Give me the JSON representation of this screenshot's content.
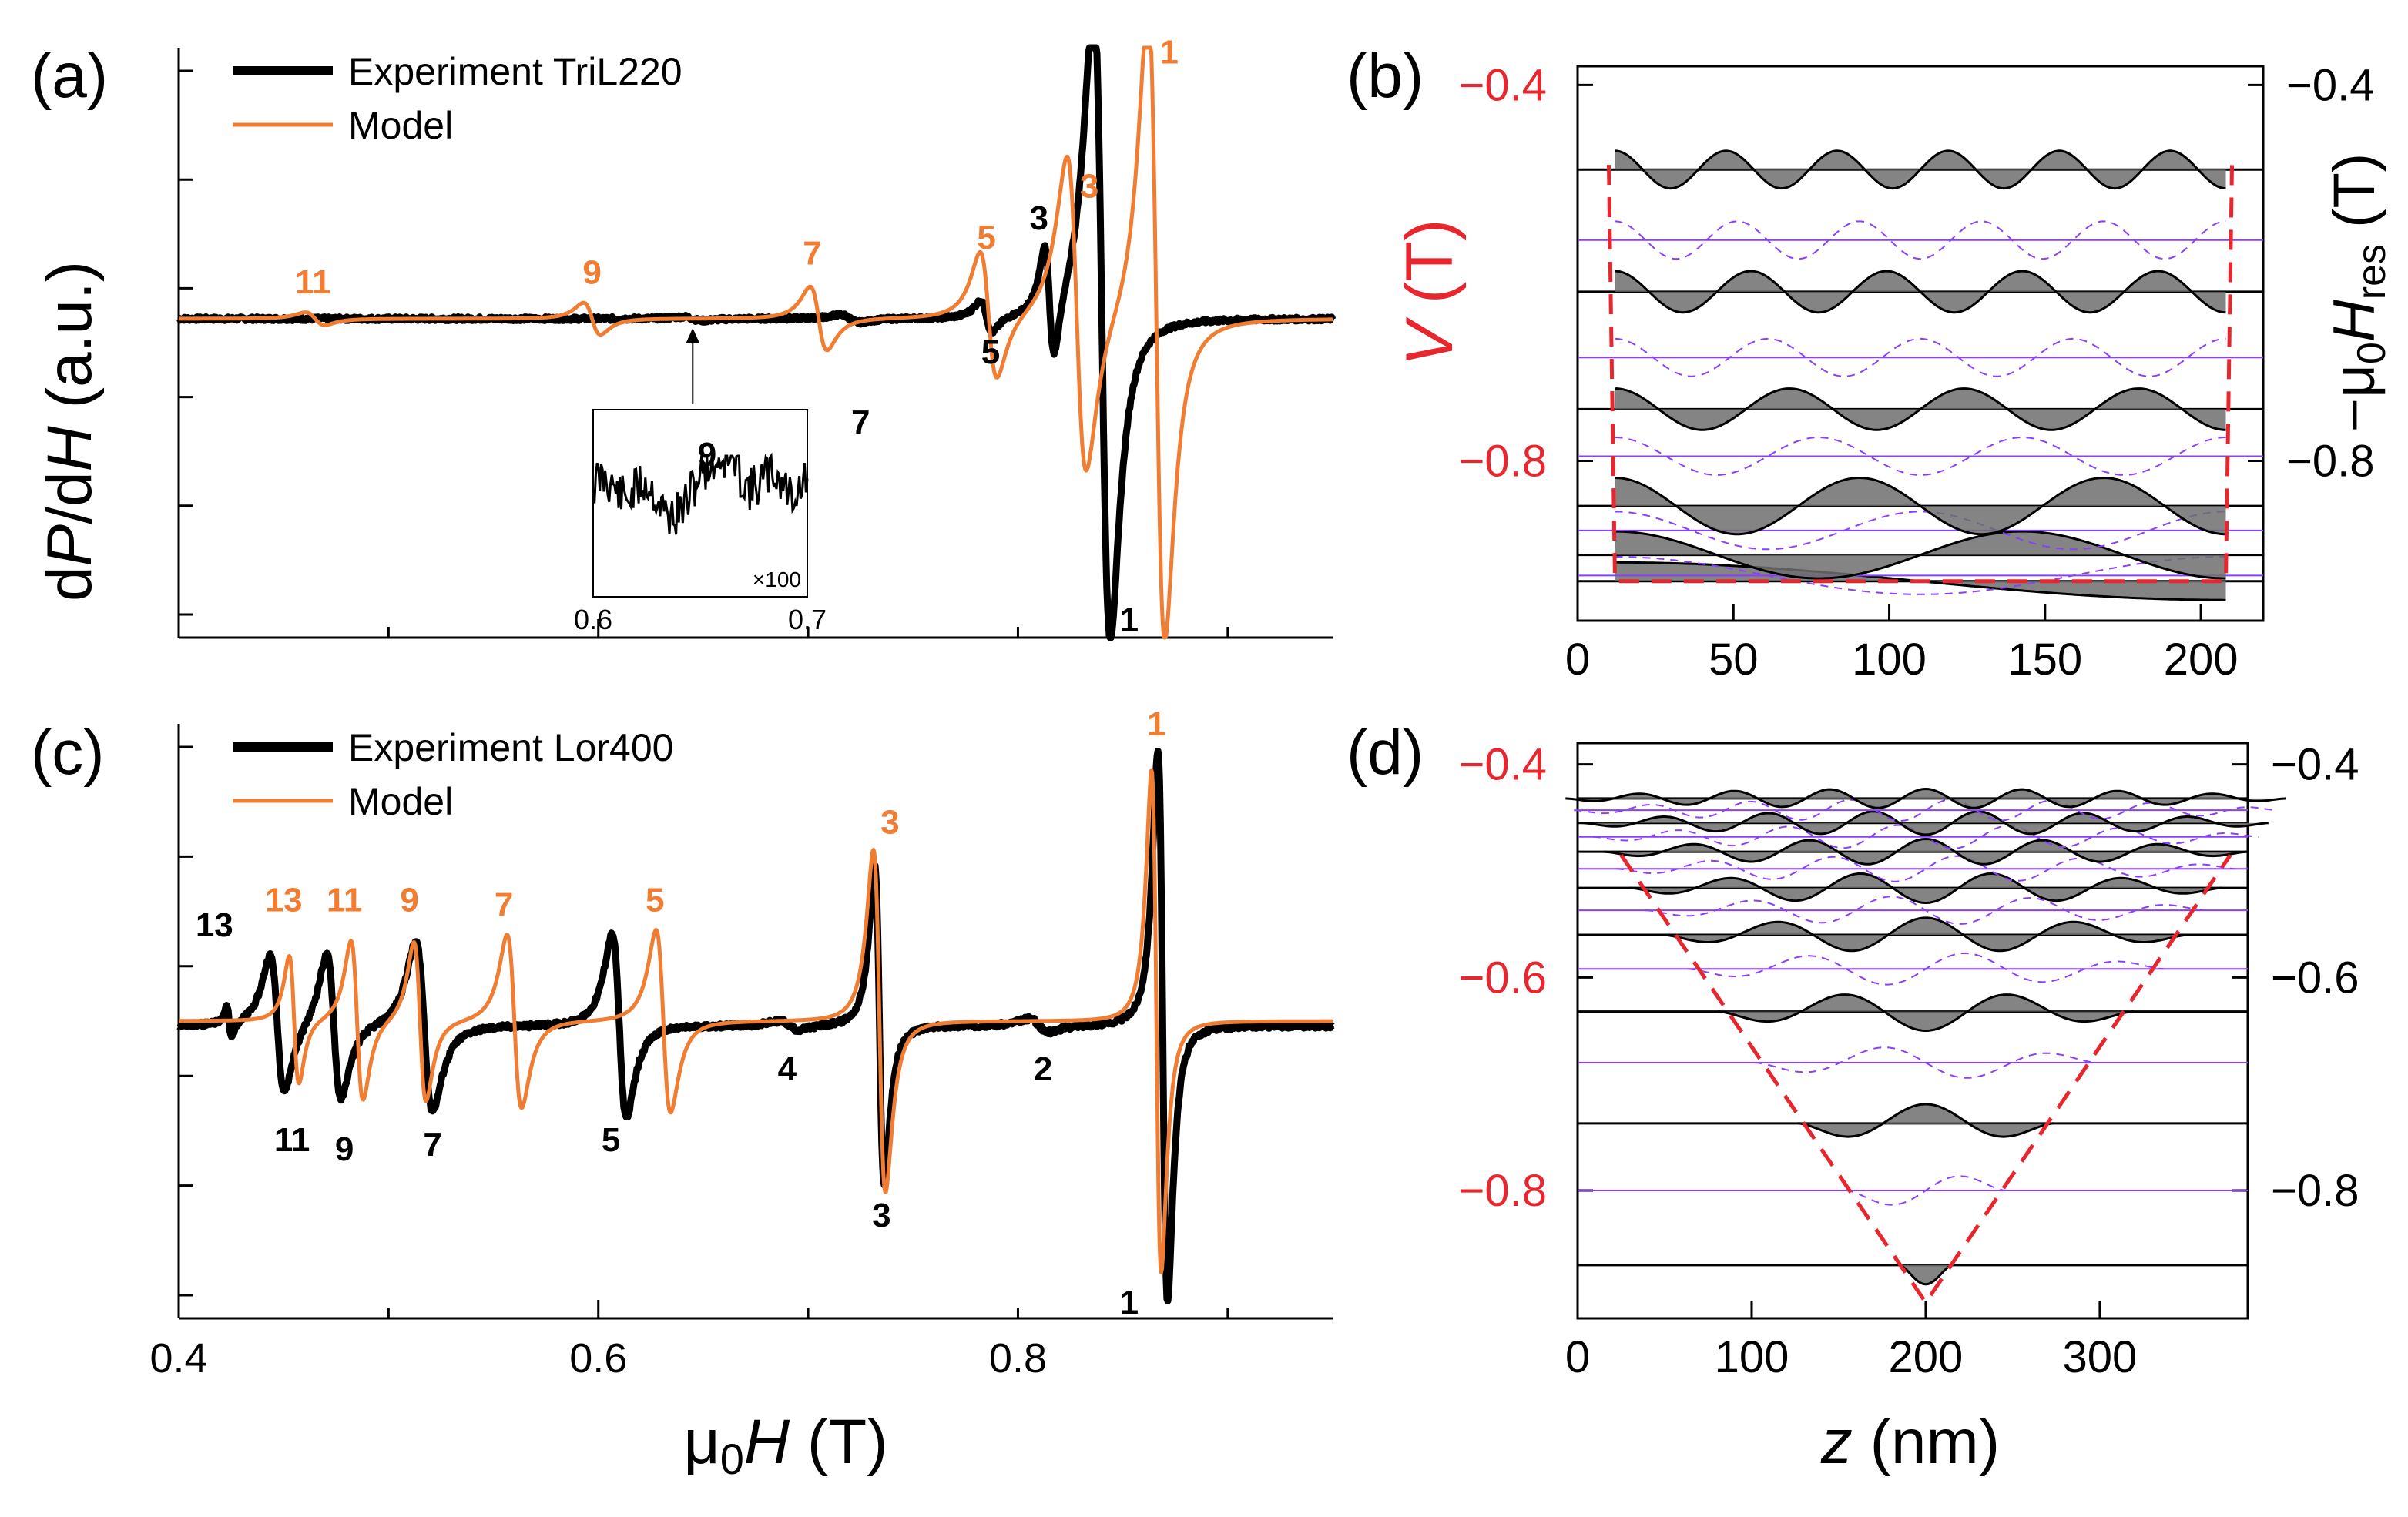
{
  "colors": {
    "experiment": "#000000",
    "model": "#f07d32",
    "potential": "#e8262e",
    "level": "#8a3ffc",
    "fill": "#6e6e6e",
    "frame": "#000000"
  },
  "chart_data": [
    {
      "id": "a",
      "type": "line",
      "panel_label": "(a)",
      "ylabel_parts": [
        "d",
        "P",
        "/d",
        "H",
        " (a.u.)"
      ],
      "xlim": [
        0.4,
        0.95
      ],
      "ylim": [
        -1.0,
        0.85
      ],
      "legend": {
        "position": "top-left",
        "entries": [
          {
            "label": "Experiment TriL220",
            "series": "experiment"
          },
          {
            "label": "Model",
            "series": "model"
          }
        ]
      },
      "series": [
        {
          "name": "Experiment TriL220",
          "resonances": [
            {
              "h0": 0.84,
              "width": 0.007,
              "amp": 1.0
            },
            {
              "h0": 0.815,
              "width": 0.004,
              "amp": 0.18
            },
            {
              "h0": 0.785,
              "width": 0.005,
              "amp": 0.05
            },
            {
              "h0": 0.72,
              "width": 0.008,
              "amp": 0.012
            },
            {
              "h0": 0.645,
              "width": 0.008,
              "amp": 0.006
            }
          ]
        },
        {
          "name": "Model",
          "resonances": [
            {
              "h0": 0.866,
              "width": 0.007,
              "amp": 1.0
            },
            {
              "h0": 0.828,
              "width": 0.008,
              "amp": 0.5
            },
            {
              "h0": 0.786,
              "width": 0.007,
              "amp": 0.2
            },
            {
              "h0": 0.705,
              "width": 0.007,
              "amp": 0.1
            },
            {
              "h0": 0.597,
              "width": 0.007,
              "amp": 0.05
            },
            {
              "h0": 0.465,
              "width": 0.008,
              "amp": 0.02
            }
          ]
        }
      ],
      "annotations": [
        {
          "text": "1",
          "x": 0.872,
          "y": 0.8,
          "series": "model"
        },
        {
          "text": "3",
          "x": 0.834,
          "y": 0.38,
          "series": "model"
        },
        {
          "text": "5",
          "x": 0.785,
          "y": 0.22,
          "series": "model"
        },
        {
          "text": "7",
          "x": 0.702,
          "y": 0.17,
          "series": "model"
        },
        {
          "text": "9",
          "x": 0.597,
          "y": 0.11,
          "series": "model"
        },
        {
          "text": "11",
          "x": 0.464,
          "y": 0.08,
          "series": "model"
        },
        {
          "text": "3",
          "x": 0.81,
          "y": 0.28,
          "series": "experiment"
        },
        {
          "text": "5",
          "x": 0.787,
          "y": -0.14,
          "series": "experiment"
        },
        {
          "text": "7",
          "x": 0.725,
          "y": -0.36,
          "series": "experiment"
        },
        {
          "text": "1",
          "x": 0.853,
          "y": -0.98,
          "series": "experiment"
        }
      ],
      "inset": {
        "label": "9",
        "scale_label": "×100",
        "xlim": [
          0.6,
          0.7
        ],
        "xticks": [
          "0.6",
          "0.7"
        ],
        "arrow_to_x": 0.645
      }
    },
    {
      "id": "b",
      "type": "line",
      "panel_label": "(b)",
      "ylabel_parts": [
        "V",
        " (T)"
      ],
      "right_ylabel_parts": [
        "−μ",
        "0",
        "H",
        "res",
        " (T)"
      ],
      "xlim": [
        0,
        220
      ],
      "ylim": [
        -0.97,
        -0.38
      ],
      "xticks": [
        0,
        50,
        100,
        150,
        200
      ],
      "xtick_labels": [
        "0",
        "50",
        "100",
        "150",
        "200"
      ],
      "yticks": [
        -0.4,
        -0.8
      ],
      "ytick_labels": [
        "−0.4",
        "−0.8"
      ],
      "potential": {
        "z": [
          10,
          12,
          208,
          210
        ],
        "v": [
          -0.485,
          -0.928,
          -0.928,
          -0.485
        ]
      },
      "well": [
        12,
        208
      ],
      "levels": [
        {
          "energy": -0.928,
          "mode": 1,
          "kind": "solid",
          "amp": 0.02
        },
        {
          "energy": -0.922,
          "mode": 2,
          "kind": "dashed",
          "amp": 0.02
        },
        {
          "energy": -0.9,
          "mode": 3,
          "kind": "solid",
          "amp": 0.025
        },
        {
          "energy": -0.874,
          "mode": 4,
          "kind": "dashed",
          "amp": 0.02
        },
        {
          "energy": -0.848,
          "mode": 5,
          "kind": "solid",
          "amp": 0.03
        },
        {
          "energy": -0.795,
          "mode": 6,
          "kind": "dashed",
          "amp": 0.02
        },
        {
          "energy": -0.745,
          "mode": 7,
          "kind": "solid",
          "amp": 0.022
        },
        {
          "energy": -0.69,
          "mode": 8,
          "kind": "dashed",
          "amp": 0.02
        },
        {
          "energy": -0.62,
          "mode": 9,
          "kind": "solid",
          "amp": 0.022
        },
        {
          "energy": -0.565,
          "mode": 10,
          "kind": "dashed",
          "amp": 0.02
        },
        {
          "energy": -0.49,
          "mode": 11,
          "kind": "solid",
          "amp": 0.02
        }
      ]
    },
    {
      "id": "c",
      "type": "line",
      "panel_label": "(c)",
      "xlabel_parts": [
        "μ",
        "0",
        "H",
        " (T)"
      ],
      "xlim": [
        0.4,
        0.95
      ],
      "ylim": [
        -1.3,
        1.3
      ],
      "xticks": [
        0.4,
        0.6,
        0.8
      ],
      "xtick_labels": [
        "0.4",
        "0.6",
        "0.8"
      ],
      "legend": {
        "position": "top-left",
        "entries": [
          {
            "label": "Experiment Lor400",
            "series": "experiment"
          },
          {
            "label": "Model",
            "series": "model"
          }
        ]
      },
      "series": [
        {
          "name": "Experiment Lor400",
          "baseline_y": -0.02,
          "resonances": [
            {
              "h0": 0.869,
              "width": 0.004,
              "amp": 1.2
            },
            {
              "h0": 0.734,
              "width": 0.004,
              "amp": 0.7
            },
            {
              "h0": 0.61,
              "width": 0.006,
              "amp": 0.4
            },
            {
              "h0": 0.517,
              "width": 0.007,
              "amp": 0.37
            },
            {
              "h0": 0.474,
              "width": 0.006,
              "amp": 0.32
            },
            {
              "h0": 0.447,
              "width": 0.006,
              "amp": 0.3
            },
            {
              "h0": 0.424,
              "width": 0.002,
              "amp": 0.07
            },
            {
              "h0": 0.691,
              "width": 0.008,
              "amp": 0.02
            },
            {
              "h0": 0.81,
              "width": 0.008,
              "amp": 0.03
            }
          ]
        },
        {
          "name": "Model",
          "baseline_y": 0.0,
          "resonances": [
            {
              "h0": 0.866,
              "width": 0.004,
              "amp": 1.1
            },
            {
              "h0": 0.734,
              "width": 0.005,
              "amp": 0.75
            },
            {
              "h0": 0.631,
              "width": 0.006,
              "amp": 0.4
            },
            {
              "h0": 0.56,
              "width": 0.006,
              "amp": 0.38
            },
            {
              "h0": 0.515,
              "width": 0.005,
              "amp": 0.35
            },
            {
              "h0": 0.485,
              "width": 0.005,
              "amp": 0.35
            },
            {
              "h0": 0.455,
              "width": 0.004,
              "amp": 0.28
            }
          ]
        }
      ],
      "annotations": [
        {
          "text": "1",
          "x": 0.866,
          "y": 1.25,
          "series": "model"
        },
        {
          "text": "3",
          "x": 0.739,
          "y": 0.82,
          "series": "model"
        },
        {
          "text": "5",
          "x": 0.627,
          "y": 0.48,
          "series": "model"
        },
        {
          "text": "7",
          "x": 0.555,
          "y": 0.46,
          "series": "model"
        },
        {
          "text": "9",
          "x": 0.51,
          "y": 0.48,
          "series": "model"
        },
        {
          "text": "11",
          "x": 0.479,
          "y": 0.48,
          "series": "model"
        },
        {
          "text": "13",
          "x": 0.45,
          "y": 0.48,
          "series": "model"
        },
        {
          "text": "13",
          "x": 0.417,
          "y": 0.37,
          "series": "experiment"
        },
        {
          "text": "11",
          "x": 0.454,
          "y": -0.57,
          "series": "experiment"
        },
        {
          "text": "9",
          "x": 0.479,
          "y": -0.61,
          "series": "experiment"
        },
        {
          "text": "7",
          "x": 0.521,
          "y": -0.59,
          "series": "experiment"
        },
        {
          "text": "5",
          "x": 0.606,
          "y": -0.57,
          "series": "experiment"
        },
        {
          "text": "4",
          "x": 0.69,
          "y": -0.26,
          "series": "experiment"
        },
        {
          "text": "3",
          "x": 0.735,
          "y": -0.9,
          "series": "experiment"
        },
        {
          "text": "2",
          "x": 0.812,
          "y": -0.26,
          "series": "experiment"
        },
        {
          "text": "1",
          "x": 0.853,
          "y": -1.28,
          "series": "experiment"
        }
      ]
    },
    {
      "id": "d",
      "type": "line",
      "panel_label": "(d)",
      "xlabel_parts": [
        "z",
        " (nm)"
      ],
      "xlim": [
        0,
        385
      ],
      "ylim": [
        -0.92,
        -0.38
      ],
      "xticks": [
        0,
        100,
        200,
        300
      ],
      "xtick_labels": [
        "0",
        "100",
        "200",
        "300"
      ],
      "yticks": [
        -0.4,
        -0.6,
        -0.8
      ],
      "ytick_labels": [
        "−0.4",
        "−0.6",
        "−0.8"
      ],
      "potential": {
        "z": [
          25,
          200,
          375
        ],
        "v": [
          -0.485,
          -0.905,
          -0.485
        ]
      },
      "levels": [
        {
          "energy": -0.87,
          "mode": 1,
          "kind": "solid",
          "amp": 0.018
        },
        {
          "energy": -0.8,
          "mode": 2,
          "kind": "dashed",
          "amp": 0.016
        },
        {
          "energy": -0.737,
          "mode": 3,
          "kind": "solid",
          "amp": 0.018
        },
        {
          "energy": -0.68,
          "mode": 4,
          "kind": "dashed",
          "amp": 0.015
        },
        {
          "energy": -0.632,
          "mode": 5,
          "kind": "solid",
          "amp": 0.018
        },
        {
          "energy": -0.592,
          "mode": 6,
          "kind": "dashed",
          "amp": 0.015
        },
        {
          "energy": -0.56,
          "mode": 7,
          "kind": "solid",
          "amp": 0.016
        },
        {
          "energy": -0.537,
          "mode": 8,
          "kind": "dashed",
          "amp": 0.013
        },
        {
          "energy": -0.516,
          "mode": 9,
          "kind": "solid",
          "amp": 0.014
        },
        {
          "energy": -0.498,
          "mode": 10,
          "kind": "dashed",
          "amp": 0.012
        },
        {
          "energy": -0.482,
          "mode": 11,
          "kind": "solid",
          "amp": 0.012
        },
        {
          "energy": -0.468,
          "mode": 12,
          "kind": "dashed",
          "amp": 0.011
        },
        {
          "energy": -0.455,
          "mode": 13,
          "kind": "solid",
          "amp": 0.011
        },
        {
          "energy": -0.443,
          "mode": 14,
          "kind": "dashed",
          "amp": 0.01
        },
        {
          "energy": -0.432,
          "mode": 15,
          "kind": "solid",
          "amp": 0.009
        }
      ]
    }
  ]
}
